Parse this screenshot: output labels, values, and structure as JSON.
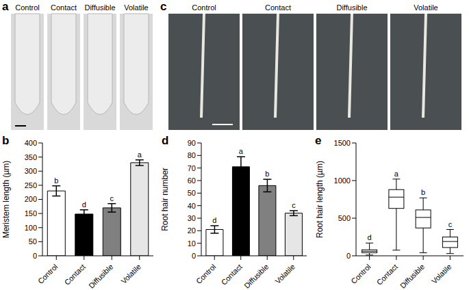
{
  "images": [
    {
      "panel": "a",
      "labels": [
        "Control",
        "Contact",
        "Diffusible",
        "Volatile"
      ]
    },
    {
      "panel": "c",
      "labels": [
        "Control",
        "Contact",
        "Diffusible",
        "Volatile"
      ]
    }
  ],
  "chart_data": [
    {
      "panel": "b",
      "type": "bar",
      "categories": [
        "Control",
        "Contact",
        "Diffusible",
        "Volatile"
      ],
      "values": [
        230,
        148,
        170,
        330
      ],
      "errors": [
        18,
        15,
        15,
        10
      ],
      "letters": [
        "b",
        "d",
        "c",
        "a"
      ],
      "colors": [
        "#ffffff",
        "#000000",
        "#808080",
        "#e6e6e6"
      ],
      "ylabel": "Meristem length (µm)",
      "ylim": [
        0,
        400
      ],
      "yticks": [
        0,
        50,
        100,
        150,
        200,
        250,
        300,
        350,
        400
      ]
    },
    {
      "panel": "d",
      "type": "bar",
      "categories": [
        "Control",
        "Contact",
        "Diffusible",
        "Volatile"
      ],
      "values": [
        21,
        71,
        56,
        34
      ],
      "errors": [
        3,
        8,
        5,
        2
      ],
      "letters": [
        "d",
        "a",
        "b",
        "c"
      ],
      "colors": [
        "#ffffff",
        "#000000",
        "#808080",
        "#e6e6e6"
      ],
      "ylabel": "Root hair number",
      "ylim": [
        0,
        90
      ],
      "yticks": [
        0,
        10,
        20,
        30,
        40,
        50,
        60,
        70,
        80,
        90
      ]
    },
    {
      "panel": "e",
      "type": "box",
      "categories": [
        "Control",
        "Contact",
        "Diffusible",
        "Volatile"
      ],
      "min": [
        10,
        75,
        40,
        30
      ],
      "q1": [
        40,
        630,
        370,
        110
      ],
      "median": [
        60,
        780,
        510,
        190
      ],
      "q3": [
        80,
        880,
        610,
        250
      ],
      "max": [
        170,
        1020,
        770,
        350
      ],
      "letters": [
        "d",
        "a",
        "b",
        "c"
      ],
      "color": "#ffffff",
      "ylabel": "Root hair length (µm)",
      "ylim": [
        0,
        1500
      ],
      "yticks": [
        0,
        500,
        1000,
        1500
      ]
    }
  ]
}
